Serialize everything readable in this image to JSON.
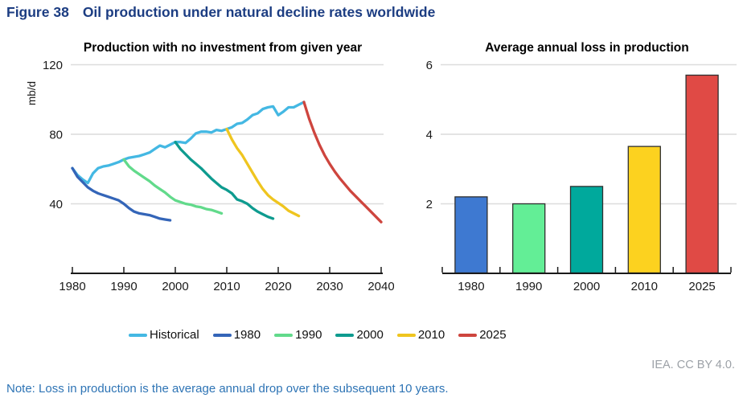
{
  "figure": {
    "label": "Figure 38",
    "title": "Oil production under natural decline rates worldwide"
  },
  "credit": "IEA. CC BY 4.0.",
  "note": "Note: Loss in production is the average annual drop over the subsequent 10 years.",
  "legend": {
    "position": "bottom",
    "items": [
      {
        "label": "Historical",
        "color": "#44b8e3"
      },
      {
        "label": "1980",
        "color": "#3465b8"
      },
      {
        "label": "1990",
        "color": "#62da8b"
      },
      {
        "label": "2000",
        "color": "#0e9b8f"
      },
      {
        "label": "2010",
        "color": "#efc51f"
      },
      {
        "label": "2025",
        "color": "#ce453e"
      }
    ]
  },
  "chart_data": [
    {
      "type": "line",
      "title": "Production with no investment from given year",
      "xlabel": "",
      "ylabel": "mb/d",
      "xlim": [
        1980,
        2040
      ],
      "ylim": [
        0,
        120
      ],
      "xticks": [
        1980,
        1990,
        2000,
        2010,
        2020,
        2030,
        2040
      ],
      "yticks": [
        40,
        80,
        120
      ],
      "grid": true,
      "legend_position": "bottom-shared",
      "series": [
        {
          "name": "Historical",
          "color": "#44b8e3",
          "points": [
            [
              1980,
              60.5
            ],
            [
              1981,
              56.5
            ],
            [
              1982,
              54
            ],
            [
              1983,
              52
            ],
            [
              1984,
              57.5
            ],
            [
              1985,
              60.5
            ],
            [
              1986,
              61.5
            ],
            [
              1987,
              62
            ],
            [
              1988,
              63
            ],
            [
              1989,
              64
            ],
            [
              1990,
              65.5
            ],
            [
              1991,
              66.5
            ],
            [
              1992,
              67
            ],
            [
              1993,
              67.5
            ],
            [
              1994,
              68.5
            ],
            [
              1995,
              69.5
            ],
            [
              1996,
              71.5
            ],
            [
              1997,
              73.5
            ],
            [
              1998,
              72.5
            ],
            [
              1999,
              74
            ],
            [
              2000,
              75.5
            ],
            [
              2001,
              75.5
            ],
            [
              2002,
              75
            ],
            [
              2003,
              77.5
            ],
            [
              2004,
              80.5
            ],
            [
              2005,
              81.5
            ],
            [
              2006,
              81.5
            ],
            [
              2007,
              81
            ],
            [
              2008,
              82.5
            ],
            [
              2009,
              82
            ],
            [
              2010,
              83
            ],
            [
              2011,
              84
            ],
            [
              2012,
              86
            ],
            [
              2013,
              86.5
            ],
            [
              2014,
              88.5
            ],
            [
              2015,
              91
            ],
            [
              2016,
              92
            ],
            [
              2017,
              94.5
            ],
            [
              2018,
              95.5
            ],
            [
              2019,
              96
            ],
            [
              2020,
              91
            ],
            [
              2021,
              93
            ],
            [
              2022,
              95.5
            ],
            [
              2023,
              95.5
            ],
            [
              2024,
              97
            ],
            [
              2025,
              98.5
            ]
          ]
        },
        {
          "name": "1980",
          "color": "#3465b8",
          "points": [
            [
              1980,
              60.5
            ],
            [
              1981,
              55.5
            ],
            [
              1982,
              52.5
            ],
            [
              1983,
              49.5
            ],
            [
              1984,
              47.5
            ],
            [
              1985,
              46
            ],
            [
              1986,
              45
            ],
            [
              1987,
              44
            ],
            [
              1988,
              43
            ],
            [
              1989,
              42
            ],
            [
              1990,
              40
            ],
            [
              1991,
              37.5
            ],
            [
              1992,
              35.5
            ],
            [
              1993,
              34.5
            ],
            [
              1994,
              34
            ],
            [
              1995,
              33.5
            ],
            [
              1996,
              32.5
            ],
            [
              1997,
              31.5
            ],
            [
              1998,
              31
            ],
            [
              1999,
              30.5
            ]
          ]
        },
        {
          "name": "1990",
          "color": "#62da8b",
          "points": [
            [
              1990,
              65.5
            ],
            [
              1991,
              61.5
            ],
            [
              1992,
              59
            ],
            [
              1993,
              57
            ],
            [
              1994,
              55
            ],
            [
              1995,
              53
            ],
            [
              1996,
              50.5
            ],
            [
              1997,
              48.5
            ],
            [
              1998,
              46.5
            ],
            [
              1999,
              44
            ],
            [
              2000,
              42
            ],
            [
              2001,
              41
            ],
            [
              2002,
              40
            ],
            [
              2003,
              39.5
            ],
            [
              2004,
              38.5
            ],
            [
              2005,
              38
            ],
            [
              2006,
              37
            ],
            [
              2007,
              36.5
            ],
            [
              2008,
              35.5
            ],
            [
              2009,
              34.5
            ]
          ]
        },
        {
          "name": "2000",
          "color": "#0e9b8f",
          "points": [
            [
              2000,
              75.5
            ],
            [
              2001,
              71.5
            ],
            [
              2002,
              68.5
            ],
            [
              2003,
              65.5
            ],
            [
              2004,
              63
            ],
            [
              2005,
              60.5
            ],
            [
              2006,
              57.5
            ],
            [
              2007,
              54.5
            ],
            [
              2008,
              52
            ],
            [
              2009,
              49.5
            ],
            [
              2010,
              48
            ],
            [
              2011,
              46
            ],
            [
              2012,
              42.5
            ],
            [
              2013,
              41.5
            ],
            [
              2014,
              40
            ],
            [
              2015,
              37.5
            ],
            [
              2016,
              35.5
            ],
            [
              2017,
              34
            ],
            [
              2018,
              32.5
            ],
            [
              2019,
              31.5
            ]
          ]
        },
        {
          "name": "2010",
          "color": "#efc51f",
          "points": [
            [
              2010,
              83
            ],
            [
              2011,
              77
            ],
            [
              2012,
              72
            ],
            [
              2013,
              68
            ],
            [
              2014,
              63
            ],
            [
              2015,
              58
            ],
            [
              2016,
              53
            ],
            [
              2017,
              48.5
            ],
            [
              2018,
              45
            ],
            [
              2019,
              42.5
            ],
            [
              2020,
              40.5
            ],
            [
              2021,
              38.5
            ],
            [
              2022,
              36
            ],
            [
              2023,
              34.5
            ],
            [
              2024,
              33
            ]
          ]
        },
        {
          "name": "2025",
          "color": "#ce453e",
          "points": [
            [
              2025,
              98.5
            ],
            [
              2026,
              89
            ],
            [
              2027,
              81
            ],
            [
              2028,
              74
            ],
            [
              2029,
              68
            ],
            [
              2030,
              63
            ],
            [
              2031,
              58.5
            ],
            [
              2032,
              54.5
            ],
            [
              2033,
              51
            ],
            [
              2034,
              47.5
            ],
            [
              2035,
              44.5
            ],
            [
              2036,
              41.5
            ],
            [
              2037,
              38.5
            ],
            [
              2038,
              35.5
            ],
            [
              2039,
              32.5
            ],
            [
              2040,
              29.5
            ]
          ]
        }
      ]
    },
    {
      "type": "bar",
      "title": "Average annual loss in production",
      "xlabel": "",
      "ylabel": "",
      "categories": [
        "1980",
        "1990",
        "2000",
        "2010",
        "2025"
      ],
      "values": [
        2.2,
        2.0,
        2.5,
        3.65,
        5.7
      ],
      "bar_colors": [
        "#3e79d1",
        "#63ee96",
        "#00a99c",
        "#fcd21f",
        "#e04a45"
      ],
      "bar_border_color": "#2f2f2f",
      "ylim": [
        0,
        6.4
      ],
      "yticks": [
        2,
        4,
        6
      ],
      "grid": true
    }
  ]
}
